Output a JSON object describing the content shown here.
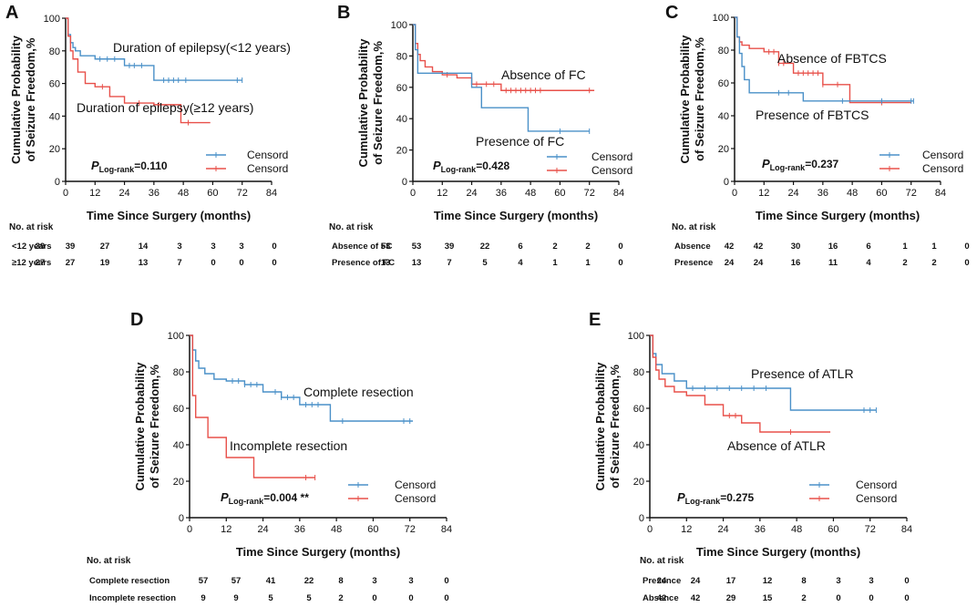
{
  "figure": {
    "colors": {
      "blue": "#4a90c8",
      "red": "#e8504a",
      "axis": "#111111"
    },
    "common": {
      "ylabel_line1": "Cumulative Probability",
      "ylabel_line2": "of Seizure Freedom,%",
      "xlabel": "Time Since Surgery (months)",
      "risk_title": "No. at risk",
      "legend_label": "Censord",
      "p_prefix": "P",
      "p_sub": "Log-rank"
    }
  },
  "chart_data": [
    {
      "panel": "A",
      "type": "line",
      "xlim": [
        0,
        84
      ],
      "ylim": [
        0,
        100
      ],
      "xticks": [
        0,
        12,
        24,
        36,
        48,
        60,
        72,
        84
      ],
      "yticks": [
        0,
        20,
        40,
        60,
        80,
        100
      ],
      "p_value": "=0.110",
      "p_suffix": "",
      "series": [
        {
          "name": "Duration of epilepsy(<12 years)",
          "color": "blue",
          "x": [
            0,
            1,
            2,
            3,
            4,
            6,
            12,
            24,
            36,
            72
          ],
          "y": [
            100,
            90,
            85,
            82,
            80,
            77,
            75,
            71,
            62,
            62
          ],
          "censor_x": [
            14,
            17,
            20,
            26,
            28,
            31,
            40,
            42,
            44,
            46,
            49,
            70,
            72
          ]
        },
        {
          "name": "Duration of epilepsy(≥12 years)",
          "color": "red",
          "x": [
            0,
            1,
            2,
            3,
            5,
            8,
            12,
            18,
            24,
            36,
            47,
            59
          ],
          "y": [
            100,
            89,
            80,
            75,
            67,
            60,
            58,
            52,
            48,
            47,
            36,
            36
          ],
          "censor_x": [
            15,
            30,
            38,
            50
          ]
        }
      ],
      "risk_table": {
        "times": [
          0,
          12,
          24,
          36,
          48,
          60,
          72,
          84
        ],
        "rows": [
          {
            "label": "<12 years",
            "counts": [
              39,
              39,
              27,
              14,
              3,
              3,
              3,
              0
            ]
          },
          {
            "label": "≥12 years",
            "counts": [
              27,
              27,
              19,
              13,
              7,
              0,
              0,
              0
            ]
          }
        ]
      }
    },
    {
      "panel": "B",
      "type": "line",
      "xlim": [
        0,
        84
      ],
      "ylim": [
        0,
        100
      ],
      "xticks": [
        0,
        12,
        24,
        36,
        48,
        60,
        72,
        84
      ],
      "yticks": [
        0,
        20,
        40,
        60,
        80,
        100
      ],
      "p_value": "=0.428",
      "p_suffix": "",
      "series": [
        {
          "name": "Absence of FC",
          "color": "red",
          "x": [
            0,
            1,
            2,
            3,
            5,
            8,
            12,
            18,
            24,
            36,
            74
          ],
          "y": [
            100,
            88,
            81,
            77,
            73,
            70,
            68,
            66,
            62,
            58,
            58
          ],
          "censor_x": [
            14,
            26,
            30,
            33,
            38,
            40,
            42,
            44,
            46,
            48,
            50,
            52,
            72
          ]
        },
        {
          "name": "Presence of FC",
          "color": "blue",
          "x": [
            0,
            1,
            2,
            24,
            28,
            47,
            72
          ],
          "y": [
            100,
            84,
            69,
            60,
            47,
            32,
            32
          ],
          "censor_x": [
            60,
            72
          ]
        }
      ],
      "risk_table": {
        "times": [
          0,
          12,
          24,
          36,
          48,
          60,
          72,
          84
        ],
        "rows": [
          {
            "label": "Absence of FC",
            "counts": [
              53,
              53,
              39,
              22,
              6,
              2,
              2,
              0
            ]
          },
          {
            "label": "Presence of FC",
            "counts": [
              13,
              13,
              7,
              5,
              4,
              1,
              1,
              0
            ]
          }
        ]
      }
    },
    {
      "panel": "C",
      "type": "line",
      "xlim": [
        0,
        84
      ],
      "ylim": [
        0,
        100
      ],
      "xticks": [
        0,
        12,
        24,
        36,
        48,
        60,
        72,
        84
      ],
      "yticks": [
        0,
        20,
        40,
        60,
        80,
        100
      ],
      "p_value": "=0.237",
      "p_suffix": "",
      "series": [
        {
          "name": "Absence of FBTCS",
          "color": "red",
          "x": [
            0,
            1,
            2,
            3,
            6,
            12,
            18,
            24,
            36,
            47,
            72
          ],
          "y": [
            100,
            88,
            85,
            83,
            81,
            79,
            72,
            66,
            59,
            48,
            48
          ],
          "censor_x": [
            14,
            16,
            18,
            20,
            26,
            28,
            30,
            32,
            34,
            36,
            42,
            60
          ]
        },
        {
          "name": "Presence of FBTCS",
          "color": "blue",
          "x": [
            0,
            1,
            2,
            3,
            4,
            6,
            28,
            73
          ],
          "y": [
            100,
            88,
            78,
            70,
            62,
            54,
            49,
            49
          ],
          "censor_x": [
            18,
            22,
            44,
            60,
            72,
            73
          ]
        }
      ],
      "risk_table": {
        "times": [
          0,
          12,
          24,
          36,
          48,
          60,
          72,
          84
        ],
        "rows": [
          {
            "label": "Absence",
            "counts": [
              42,
              42,
              30,
              16,
              6,
              1,
              1,
              0
            ]
          },
          {
            "label": "Presence",
            "counts": [
              24,
              24,
              16,
              11,
              4,
              2,
              2,
              0
            ]
          }
        ]
      }
    },
    {
      "panel": "D",
      "type": "line",
      "xlim": [
        0,
        84
      ],
      "ylim": [
        0,
        100
      ],
      "xticks": [
        0,
        12,
        24,
        36,
        48,
        60,
        72,
        84
      ],
      "yticks": [
        0,
        20,
        40,
        60,
        80,
        100
      ],
      "p_value": "=0.004",
      "p_suffix": " **",
      "series": [
        {
          "name": "Complete resection",
          "color": "blue",
          "x": [
            0,
            1,
            2,
            3,
            5,
            8,
            12,
            18,
            24,
            30,
            36,
            46,
            73
          ],
          "y": [
            100,
            92,
            86,
            82,
            79,
            76,
            75,
            73,
            69,
            66,
            62,
            53,
            53
          ],
          "censor_x": [
            14,
            16,
            18,
            20,
            22,
            28,
            30,
            32,
            34,
            38,
            40,
            42,
            50,
            70,
            72
          ]
        },
        {
          "name": "Incomplete resection",
          "color": "red",
          "x": [
            0,
            1,
            2,
            6,
            12,
            21,
            41
          ],
          "y": [
            100,
            67,
            55,
            44,
            33,
            22,
            22
          ],
          "censor_x": [
            38,
            41
          ]
        }
      ],
      "risk_table": {
        "times": [
          0,
          12,
          24,
          36,
          48,
          60,
          72,
          84
        ],
        "rows": [
          {
            "label": "Complete resection",
            "counts": [
              57,
              57,
              41,
              22,
              8,
              3,
              3,
              0
            ]
          },
          {
            "label": "Incomplete resection",
            "counts": [
              9,
              9,
              5,
              5,
              2,
              0,
              0,
              0
            ]
          }
        ]
      }
    },
    {
      "panel": "E",
      "type": "line",
      "xlim": [
        0,
        84
      ],
      "ylim": [
        0,
        100
      ],
      "xticks": [
        0,
        12,
        24,
        36,
        48,
        60,
        72,
        84
      ],
      "yticks": [
        0,
        20,
        40,
        60,
        80,
        100
      ],
      "p_value": "=0.275",
      "p_suffix": "",
      "series": [
        {
          "name": "Presence of ATLR",
          "color": "blue",
          "x": [
            0,
            1,
            2,
            4,
            8,
            12,
            46,
            74
          ],
          "y": [
            100,
            90,
            84,
            79,
            75,
            71,
            59,
            59
          ],
          "censor_x": [
            14,
            18,
            22,
            26,
            30,
            34,
            38,
            70,
            72,
            74
          ]
        },
        {
          "name": "Absence of ATLR",
          "color": "red",
          "x": [
            0,
            1,
            2,
            3,
            5,
            8,
            12,
            18,
            24,
            30,
            36,
            59
          ],
          "y": [
            100,
            88,
            81,
            76,
            72,
            69,
            67,
            62,
            56,
            52,
            47,
            47
          ],
          "censor_x": [
            26,
            28,
            46
          ]
        }
      ],
      "risk_table": {
        "times": [
          0,
          12,
          24,
          36,
          48,
          60,
          72,
          84
        ],
        "rows": [
          {
            "label": "Presence",
            "counts": [
              24,
              24,
              17,
              12,
              8,
              3,
              3,
              0
            ]
          },
          {
            "label": "Absence",
            "counts": [
              42,
              42,
              29,
              15,
              2,
              0,
              0,
              0
            ]
          }
        ]
      }
    }
  ]
}
